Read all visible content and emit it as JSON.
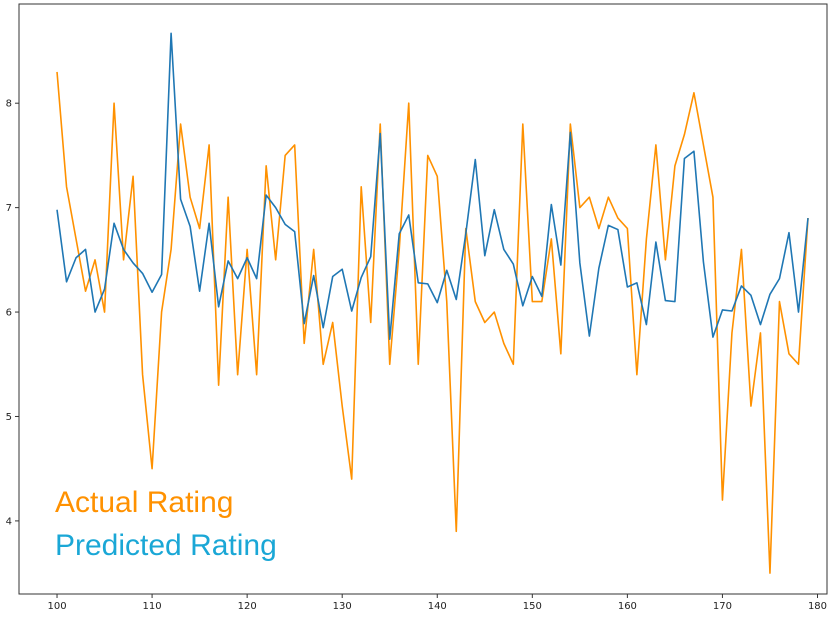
{
  "colors": {
    "actual": "#ff9100",
    "predicted": "#1f77b4",
    "predicted_legend": "#1aa7d6",
    "axes": "#333333"
  },
  "legend": {
    "actual_label": "Actual Rating",
    "predicted_label": "Predicted Rating",
    "placement": "bottom-left"
  },
  "chart_data": {
    "type": "line",
    "title": "",
    "xlabel": "",
    "ylabel": "",
    "xlim": [
      96,
      181
    ],
    "ylim": [
      3.3,
      8.95
    ],
    "xticks": [
      100,
      110,
      120,
      130,
      140,
      150,
      160,
      170,
      180
    ],
    "yticks": [
      4,
      5,
      6,
      7,
      8
    ],
    "grid": false,
    "x": [
      100,
      101,
      102,
      103,
      104,
      105,
      106,
      107,
      108,
      109,
      110,
      111,
      112,
      113,
      114,
      115,
      116,
      117,
      118,
      119,
      120,
      121,
      122,
      123,
      124,
      125,
      126,
      127,
      128,
      129,
      130,
      131,
      132,
      133,
      134,
      135,
      136,
      137,
      138,
      139,
      140,
      141,
      142,
      143,
      144,
      145,
      146,
      147,
      148,
      149,
      150,
      151,
      152,
      153,
      154,
      155,
      156,
      157,
      158,
      159,
      160,
      161,
      162,
      163,
      164,
      165,
      166,
      167,
      168,
      169,
      170,
      171,
      172,
      173,
      174,
      175,
      176,
      177,
      178,
      179
    ],
    "series": [
      {
        "name": "Actual Rating",
        "color": "#ff9100",
        "values": [
          8.3,
          7.2,
          6.7,
          6.2,
          6.5,
          6.0,
          8.0,
          6.5,
          7.3,
          5.4,
          4.5,
          6.0,
          6.6,
          7.8,
          7.1,
          6.8,
          7.6,
          5.3,
          7.1,
          5.4,
          6.6,
          5.4,
          7.4,
          6.5,
          7.5,
          7.6,
          5.7,
          6.6,
          5.5,
          5.9,
          5.1,
          4.4,
          7.2,
          5.9,
          7.8,
          5.5,
          6.6,
          8.0,
          5.5,
          7.5,
          7.3,
          6.1,
          3.9,
          6.8,
          6.1,
          5.9,
          6.0,
          5.7,
          5.5,
          7.8,
          6.1,
          6.1,
          6.7,
          5.6,
          7.8,
          7.0,
          7.1,
          6.8,
          7.1,
          6.9,
          6.8,
          5.4,
          6.7,
          7.6,
          6.5,
          7.4,
          7.7,
          8.1,
          7.6,
          7.1,
          4.2,
          5.8,
          6.6,
          5.1,
          5.8,
          3.5,
          6.1,
          5.6,
          5.5,
          6.9
        ]
      },
      {
        "name": "Predicted Rating",
        "color": "#1f77b4",
        "values": [
          6.98,
          6.29,
          6.52,
          6.6,
          6.0,
          6.22,
          6.85,
          6.6,
          6.47,
          6.37,
          6.19,
          6.36,
          8.67,
          7.08,
          6.82,
          6.2,
          6.85,
          6.05,
          6.49,
          6.32,
          6.52,
          6.32,
          7.12,
          7.0,
          6.84,
          6.77,
          5.89,
          6.35,
          5.85,
          6.34,
          6.41,
          6.01,
          6.33,
          6.53,
          7.71,
          5.74,
          6.75,
          6.93,
          6.28,
          6.27,
          6.09,
          6.4,
          6.12,
          6.75,
          7.46,
          6.54,
          6.98,
          6.6,
          6.46,
          6.06,
          6.34,
          6.15,
          7.03,
          6.45,
          7.72,
          6.47,
          5.77,
          6.42,
          6.83,
          6.79,
          6.24,
          6.28,
          5.88,
          6.67,
          6.11,
          6.1,
          7.47,
          7.54,
          6.48,
          5.76,
          6.02,
          6.01,
          6.25,
          6.16,
          5.88,
          6.17,
          6.32,
          6.76,
          6.0,
          6.9
        ]
      }
    ]
  }
}
